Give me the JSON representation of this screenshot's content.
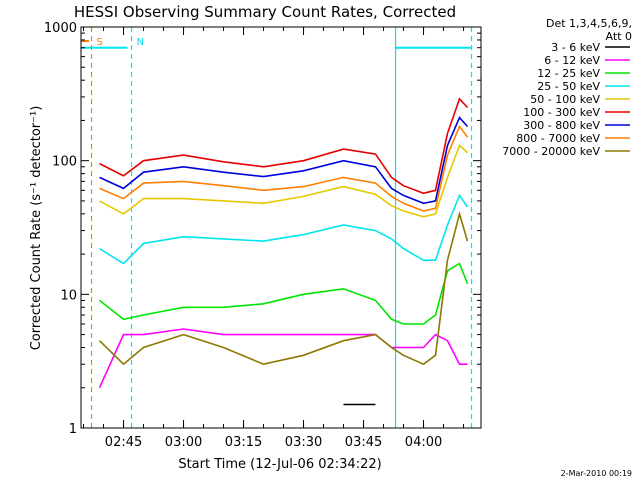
{
  "chart_data": {
    "type": "line",
    "title": "HESSI Observing Summary Count Rates, Corrected",
    "xlabel": "Start Time (12-Jul-06 02:34:22)",
    "ylabel": "Corrected Count Rate (s⁻¹ detector⁻¹)",
    "yscale": "log",
    "ylim": [
      1,
      1000
    ],
    "xlim_minutes": [
      0,
      100
    ],
    "xticks": [
      "02:45",
      "03:00",
      "03:15",
      "03:30",
      "03:45",
      "04:00"
    ],
    "yticks": [
      "1",
      "10",
      "100",
      "1000"
    ],
    "legend_header": [
      "Det 1,3,4,5,6,9,",
      "Att 0"
    ],
    "legend_position": "right",
    "footer": "2-Mar-2010 00:19",
    "annotations": [
      {
        "text": "S",
        "color": "#ff7f00",
        "at": "02:37",
        "style": "dashed vertical line"
      },
      {
        "text": "N",
        "color": "#00e5ee",
        "at": "02:47",
        "style": "dashed vertical line"
      },
      {
        "text": "",
        "color": "#00e5ee",
        "at": "03:53",
        "style": "solid vertical line"
      },
      {
        "text": "",
        "color": "#00e5ee",
        "at": "04:12",
        "style": "dashed vertical line"
      }
    ],
    "night_bars": [
      {
        "from": "02:34",
        "to": "02:46",
        "level": 700,
        "color": "#00e5ee"
      },
      {
        "from": "03:53",
        "to": "04:12",
        "level": 700,
        "color": "#00e5ee"
      }
    ],
    "time_points": [
      "02:39",
      "02:45",
      "02:50",
      "03:00",
      "03:10",
      "03:20",
      "03:30",
      "03:40",
      "03:48",
      "03:52",
      "03:55",
      "04:00",
      "04:03",
      "04:06",
      "04:09",
      "04:11"
    ],
    "series": [
      {
        "name": "3 - 6 keV",
        "color": "#000000",
        "values": [
          null,
          null,
          null,
          null,
          null,
          null,
          null,
          1.5,
          1.5,
          null,
          null,
          null,
          null,
          null,
          null,
          null
        ]
      },
      {
        "name": "6 - 12 keV",
        "color": "#ff00ff",
        "values": [
          2,
          5,
          5,
          5.5,
          5,
          5,
          5,
          5,
          5,
          4,
          4,
          4,
          5,
          4.5,
          3,
          3
        ]
      },
      {
        "name": "12 - 25 keV",
        "color": "#00e600",
        "values": [
          9,
          6.5,
          7,
          8,
          8,
          8.5,
          10,
          11,
          9,
          6.5,
          6,
          6,
          7,
          15,
          17,
          12
        ]
      },
      {
        "name": "25 - 50 keV",
        "color": "#00e5ee",
        "values": [
          22,
          17,
          24,
          27,
          26,
          25,
          28,
          33,
          30,
          26,
          22,
          18,
          18,
          33,
          55,
          45
        ]
      },
      {
        "name": "50 - 100 keV",
        "color": "#e6c800",
        "values": [
          50,
          40,
          52,
          52,
          50,
          48,
          54,
          64,
          56,
          46,
          42,
          38,
          40,
          75,
          130,
          115
        ]
      },
      {
        "name": "100 - 300 keV",
        "color": "#e60000",
        "values": [
          95,
          77,
          100,
          110,
          98,
          90,
          100,
          122,
          112,
          75,
          65,
          57,
          60,
          160,
          290,
          250
        ]
      },
      {
        "name": "300 - 800 keV",
        "color": "#0000dd",
        "values": [
          75,
          62,
          82,
          90,
          82,
          76,
          84,
          100,
          90,
          62,
          55,
          48,
          50,
          130,
          210,
          180
        ]
      },
      {
        "name": "800 - 7000 keV",
        "color": "#ff7f00",
        "values": [
          62,
          52,
          68,
          70,
          65,
          60,
          64,
          75,
          68,
          54,
          48,
          42,
          44,
          110,
          180,
          150
        ]
      },
      {
        "name": "7000 - 20000 keV",
        "color": "#8c7a00",
        "values": [
          4.5,
          3,
          4,
          5,
          4,
          3,
          3.5,
          4.5,
          5,
          4,
          3.5,
          3,
          3.5,
          18,
          40,
          25
        ]
      }
    ]
  }
}
